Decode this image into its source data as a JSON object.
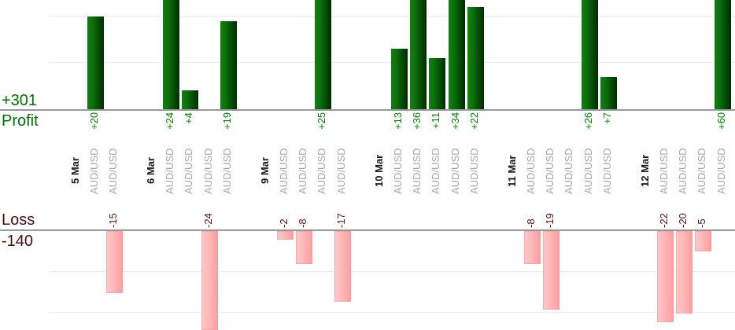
{
  "chart_data": {
    "type": "bar",
    "title": "",
    "instrument": "AUD/USD",
    "categories": [
      "5 Mar",
      "6 Mar",
      "9 Mar",
      "10 Mar",
      "11 Mar",
      "12 Mar"
    ],
    "groups": [
      {
        "date": "5 Mar",
        "trades": [
          {
            "symbol": "AUD/USD",
            "value": 20,
            "label": "+20"
          },
          {
            "symbol": "AUD/USD",
            "value": -15,
            "label": "-15"
          }
        ]
      },
      {
        "date": "6 Mar",
        "trades": [
          {
            "symbol": "AUD/USD",
            "value": 24,
            "label": "+24"
          },
          {
            "symbol": "AUD/USD",
            "value": 4,
            "label": "+4"
          },
          {
            "symbol": "AUD/USD",
            "value": -24,
            "label": "-24"
          },
          {
            "symbol": "AUD/USD",
            "value": 19,
            "label": "+19"
          }
        ]
      },
      {
        "date": "9 Mar",
        "trades": [
          {
            "symbol": "AUD/USD",
            "value": -2,
            "label": "-2"
          },
          {
            "symbol": "AUD/USD",
            "value": -8,
            "label": "-8"
          },
          {
            "symbol": "AUD/USD",
            "value": 25,
            "label": "+25"
          },
          {
            "symbol": "AUD/USD",
            "value": -17,
            "label": "-17"
          }
        ]
      },
      {
        "date": "10 Mar",
        "trades": [
          {
            "symbol": "AUD/USD",
            "value": 13,
            "label": "+13"
          },
          {
            "symbol": "AUD/USD",
            "value": 36,
            "label": "+36"
          },
          {
            "symbol": "AUD/USD",
            "value": 11,
            "label": "+11"
          },
          {
            "symbol": "AUD/USD",
            "value": 34,
            "label": "+34"
          },
          {
            "symbol": "AUD/USD",
            "value": 22,
            "label": "+22"
          }
        ]
      },
      {
        "date": "11 Mar",
        "trades": [
          {
            "symbol": "AUD/USD",
            "value": -8,
            "label": "-8"
          },
          {
            "symbol": "AUD/USD",
            "value": -19,
            "label": "-19"
          },
          {
            "symbol": "AUD/USD",
            "value": 0,
            "label": ""
          },
          {
            "symbol": "AUD/USD",
            "value": 26,
            "label": "+26"
          },
          {
            "symbol": "AUD/USD",
            "value": 7,
            "label": "+7"
          }
        ]
      },
      {
        "date": "12 Mar",
        "trades": [
          {
            "symbol": "AUD/USD",
            "value": -22,
            "label": "-22"
          },
          {
            "symbol": "AUD/USD",
            "value": -20,
            "label": "-20"
          },
          {
            "symbol": "AUD/USD",
            "value": -5,
            "label": "-5"
          },
          {
            "symbol": "AUD/USD",
            "value": 60,
            "label": "+60"
          }
        ]
      }
    ],
    "axis": {
      "profit_total_label": "+301",
      "profit_axis_label": "Profit",
      "loss_axis_label": "Loss",
      "loss_total_label": "-140",
      "profit_gridlines": [
        10,
        20
      ],
      "loss_gridlines": [
        -10,
        -20
      ],
      "grid": true,
      "legend": "none"
    },
    "totals": {
      "profit": 301,
      "loss": -140
    },
    "colors": {
      "profit_bar_gradient": [
        "#118011",
        "#002d00"
      ],
      "loss_bar_gradient": [
        "#ffc9c9",
        "#ff9d9d"
      ],
      "profit_text": "#007000",
      "loss_text": "#5a1111",
      "value_profit_text": "#008000",
      "date_text": "#1a1a1a",
      "symbol_text": "#a8a8a8",
      "axis_line": "#999999",
      "gridline": "#ededed"
    }
  }
}
